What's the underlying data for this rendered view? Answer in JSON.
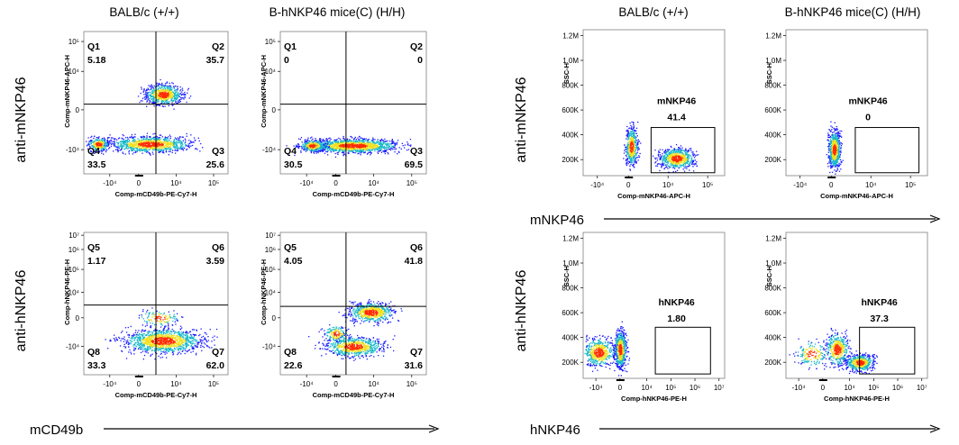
{
  "columns": {
    "balb": "BALB/c (+/+)",
    "hnkp": "B-hNKP46 mice(C) (H/H)"
  },
  "rows": {
    "m": "anti-mNKP46",
    "h": "anti-hNKP46"
  },
  "bottom": {
    "left": "mCD49b",
    "right_top": "mNKP46",
    "right_bottom": "hNKP46"
  },
  "colors": {
    "low": "#1a1aff",
    "mid": "#16b8c8",
    "high": "#f0e020",
    "peak": "#ff2a00",
    "axis": "#000000"
  },
  "chart_data": [
    {
      "id": "q_m_balb",
      "type": "scatter",
      "xlabel": "Comp-mCD49b-PE-Cy7-H",
      "ylabel": "Comp-mNKP46-APC-H",
      "xticks": [
        "-10⁴",
        "0",
        "10⁴",
        "10⁵"
      ],
      "yticks": [
        "-10⁴",
        "0",
        "10⁴",
        "10⁵"
      ],
      "quadrants": [
        {
          "name": "Q1",
          "value": "5.18"
        },
        {
          "name": "Q2",
          "value": "35.7"
        },
        {
          "name": "Q3",
          "value": "25.6"
        },
        {
          "name": "Q4",
          "value": "33.5"
        }
      ]
    },
    {
      "id": "q_m_hnkp",
      "type": "scatter",
      "xlabel": "Comp-mCD49b-PE-Cy7-H",
      "ylabel": "Comp-mNKP46-APC-H",
      "xticks": [
        "-10⁴",
        "0",
        "10⁴",
        "10⁵"
      ],
      "yticks": [
        "-10⁴",
        "0",
        "10⁴",
        "10⁵"
      ],
      "quadrants": [
        {
          "name": "Q1",
          "value": "0"
        },
        {
          "name": "Q2",
          "value": "0"
        },
        {
          "name": "Q3",
          "value": "69.5"
        },
        {
          "name": "Q4",
          "value": "30.5"
        }
      ]
    },
    {
      "id": "q_h_balb",
      "type": "scatter",
      "xlabel": "Comp-mCD49b-PE-Cy7-H",
      "ylabel": "Comp-hNKP46-PE-H",
      "xticks": [
        "-10⁴",
        "0",
        "10⁴",
        "10⁵"
      ],
      "yticks": [
        "-10⁴",
        "0",
        "10⁴",
        "10⁵",
        "10⁶",
        "10⁷"
      ],
      "quadrants": [
        {
          "name": "Q5",
          "value": "1.17"
        },
        {
          "name": "Q6",
          "value": "3.59"
        },
        {
          "name": "Q7",
          "value": "62.0"
        },
        {
          "name": "Q8",
          "value": "33.3"
        }
      ]
    },
    {
      "id": "q_h_hnkp",
      "type": "scatter",
      "xlabel": "Comp-mCD49b-PE-Cy7-H",
      "ylabel": "Comp-hNKP46-PE-H",
      "xticks": [
        "-10⁴",
        "0",
        "10⁴",
        "10⁵"
      ],
      "yticks": [
        "-10⁴",
        "0",
        "10⁴",
        "10⁵",
        "10⁶",
        "10⁷"
      ],
      "quadrants": [
        {
          "name": "Q5",
          "value": "4.05"
        },
        {
          "name": "Q6",
          "value": "41.8"
        },
        {
          "name": "Q7",
          "value": "31.6"
        },
        {
          "name": "Q8",
          "value": "22.6"
        }
      ]
    },
    {
      "id": "s_m_balb",
      "type": "scatter",
      "xlabel": "Comp-mNKP46-APC-H",
      "ylabel": "SSC-H",
      "xticks": [
        "-10⁴",
        "0",
        "10⁴",
        "10⁵"
      ],
      "yticks": [
        "200K",
        "400K",
        "600K",
        "800K",
        "1.0M",
        "1.2M"
      ],
      "gate": {
        "name": "mNKP46",
        "value": "41.4"
      }
    },
    {
      "id": "s_m_hnkp",
      "type": "scatter",
      "xlabel": "Comp-mNKP46-APC-H",
      "ylabel": "SSC-H",
      "xticks": [
        "-10⁴",
        "0",
        "10⁴",
        "10⁵"
      ],
      "yticks": [
        "200K",
        "400K",
        "600K",
        "800K",
        "1.0M",
        "1.2M"
      ],
      "gate": {
        "name": "mNKP46",
        "value": "0"
      }
    },
    {
      "id": "s_h_balb",
      "type": "scatter",
      "xlabel": "Comp-hNKP46-PE-H",
      "ylabel": "SSC-H",
      "xticks": [
        "-10⁴",
        "0",
        "10⁴",
        "10⁵",
        "10⁶",
        "10⁷"
      ],
      "yticks": [
        "200K",
        "400K",
        "600K",
        "800K",
        "1.0M",
        "1.2M"
      ],
      "gate": {
        "name": "hNKP46",
        "value": "1.80"
      }
    },
    {
      "id": "s_h_hnkp",
      "type": "scatter",
      "xlabel": "Comp-hNKP46-PE-H",
      "ylabel": "SSC-H",
      "xticks": [
        "-10⁴",
        "0",
        "10⁴",
        "10⁵",
        "10⁶",
        "10⁷"
      ],
      "yticks": [
        "200K",
        "400K",
        "600K",
        "800K",
        "1.0M",
        "1.2M"
      ],
      "gate": {
        "name": "hNKP46",
        "value": "37.3"
      }
    }
  ]
}
